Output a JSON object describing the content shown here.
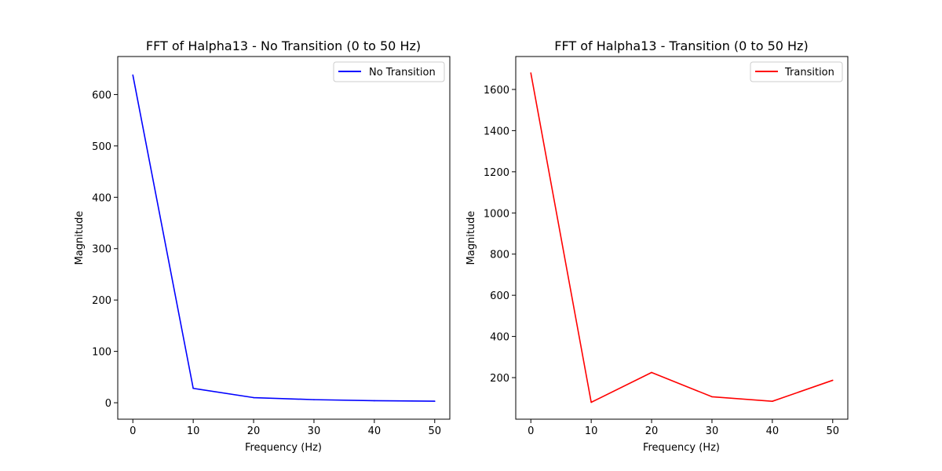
{
  "chart_data": [
    {
      "type": "line",
      "title": "FFT of Halpha13 - No Transition (0 to 50 Hz)",
      "xlabel": "Frequency (Hz)",
      "ylabel": "Magnitude",
      "x": [
        0,
        10,
        20,
        30,
        40,
        50
      ],
      "xlim": [
        -2.5,
        52.5
      ],
      "ylim": [
        -32,
        674
      ],
      "xticks": [
        0,
        10,
        20,
        30,
        40,
        50
      ],
      "yticks": [
        0,
        100,
        200,
        300,
        400,
        500,
        600
      ],
      "xtick_labels": [
        "0",
        "10",
        "20",
        "30",
        "40",
        "50"
      ],
      "ytick_labels": [
        "0",
        "100",
        "200",
        "300",
        "400",
        "500",
        "600"
      ],
      "legend": "top-right",
      "grid": false,
      "series": [
        {
          "name": "No Transition",
          "color": "#0000ff",
          "values": [
            638,
            28,
            10,
            6,
            4,
            3
          ]
        }
      ]
    },
    {
      "type": "line",
      "title": "FFT of Halpha13 - Transition (0 to 50 Hz)",
      "xlabel": "Frequency (Hz)",
      "ylabel": "Magnitude",
      "x": [
        0,
        10,
        20,
        30,
        40,
        50
      ],
      "xlim": [
        -2.5,
        52.5
      ],
      "ylim": [
        -2,
        1760
      ],
      "xticks": [
        0,
        10,
        20,
        30,
        40,
        50
      ],
      "yticks": [
        200,
        400,
        600,
        800,
        1000,
        1200,
        1400,
        1600
      ],
      "xtick_labels": [
        "0",
        "10",
        "20",
        "30",
        "40",
        "50"
      ],
      "ytick_labels": [
        "200",
        "400",
        "600",
        "800",
        "1000",
        "1200",
        "1400",
        "1600"
      ],
      "legend": "top-right",
      "grid": false,
      "series": [
        {
          "name": "Transition",
          "color": "#ff0000",
          "values": [
            1680,
            80,
            225,
            107,
            85,
            187
          ]
        }
      ]
    }
  ]
}
